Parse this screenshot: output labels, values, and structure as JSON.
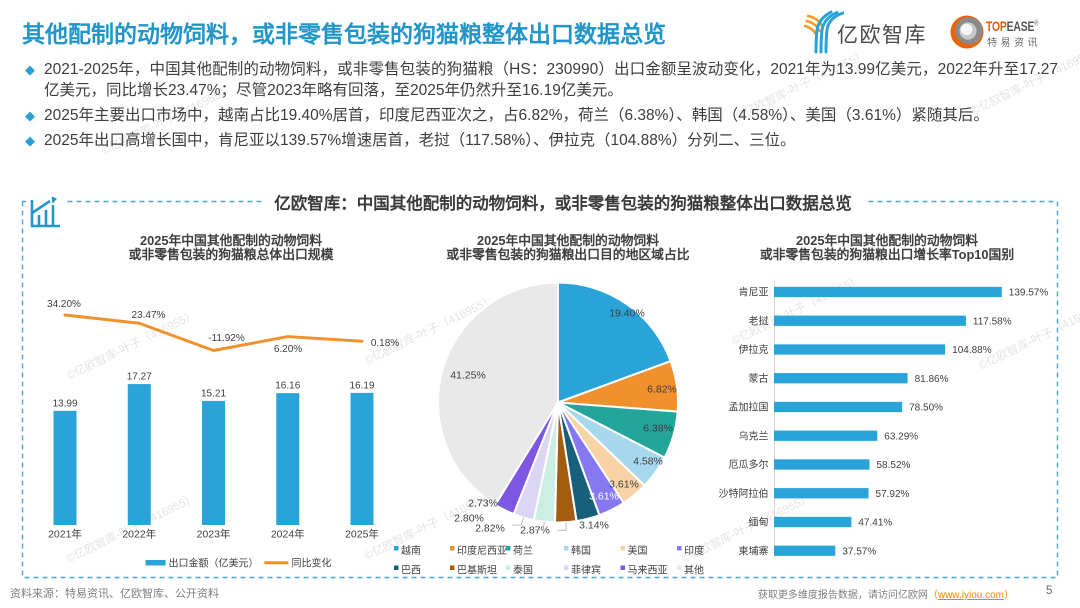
{
  "header": {
    "title": "其他配制的动物饲料，或非零售包装的狗猫粮整体出口数据总览",
    "logo_eo": {
      "name": "亿欧智库"
    },
    "logo_topease": {
      "name_en_orange": "TOP",
      "name_en_gray": "EASE",
      "reg_mark": "®",
      "name_cn": "特易资讯"
    }
  },
  "bullets": [
    "2021-2025年，中国其他配制的动物饲料，或非零售包装的狗猫粮（HS：230990）出口金额呈波动变化，2021年为13.99亿美元，2022年升至17.27亿美元，同比增长23.47%；尽管2023年略有回落，至2025年仍然升至16.19亿美元。",
    "2025年主要出口市场中，越南占比19.40%居首，印度尼西亚次之，占6.82%，荷兰（6.38%）、韩国（4.58%）、美国（3.61%）紧随其后。",
    "2025年出口高增长国中，肯尼亚以139.57%增速居首，老挝（117.58%）、伊拉克（104.88%）分列二、三位。"
  ],
  "panel": {
    "title": "亿欧智库：中国其他配制的动物饲料，或非零售包装的狗猫粮整体出口数据总览"
  },
  "chart_data": [
    {
      "type": "bar",
      "title_lines": [
        "2025年中国其他配制的动物饲料",
        "或非零售包装的狗猫粮总体出口规模"
      ],
      "categories": [
        "2021年",
        "2022年",
        "2023年",
        "2024年",
        "2025年"
      ],
      "series": [
        {
          "name": "出口金额（亿美元）",
          "type": "bar",
          "color": "#2AA3D8",
          "values": [
            13.99,
            17.27,
            15.21,
            16.16,
            16.19
          ]
        },
        {
          "name": "同比变化",
          "type": "line",
          "color": "#F0912D",
          "unit": "%",
          "values": [
            34.2,
            23.47,
            -11.92,
            6.2,
            0.18
          ]
        }
      ]
    },
    {
      "type": "pie",
      "title_lines": [
        "2025年中国其他配制的动物饲料",
        "或非零售包装的狗猫粮出口目的地区域占比"
      ],
      "unit": "%",
      "slices": [
        {
          "label": "越南",
          "value": 19.4,
          "color": "#2AA3D8"
        },
        {
          "label": "印度尼西亚",
          "value": 6.82,
          "color": "#F0912D"
        },
        {
          "label": "荷兰",
          "value": 6.38,
          "color": "#23A59B"
        },
        {
          "label": "韩国",
          "value": 4.58,
          "color": "#A8D8ED"
        },
        {
          "label": "美国",
          "value": 3.61,
          "color": "#F7D3A6"
        },
        {
          "label": "印度",
          "value": 3.61,
          "color": "#8678F0"
        },
        {
          "label": "巴西",
          "value": 3.14,
          "color": "#17607C"
        },
        {
          "label": "巴基斯坦",
          "value": 2.87,
          "color": "#A35C10"
        },
        {
          "label": "泰国",
          "value": 2.82,
          "color": "#CBEFE3"
        },
        {
          "label": "菲律宾",
          "value": 2.8,
          "color": "#DAD6F4"
        },
        {
          "label": "马来西亚",
          "value": 2.73,
          "color": "#7D57E2"
        },
        {
          "label": "其他",
          "value": 41.25,
          "color": "#E9E9E9"
        }
      ]
    },
    {
      "type": "bar",
      "orientation": "horizontal",
      "title_lines": [
        "2025年中国其他配制的动物饲料",
        "或非零售包装的狗猫粮出口增长率Top10国别"
      ],
      "color": "#2AA3D8",
      "unit": "%",
      "categories": [
        "肯尼亚",
        "老挝",
        "伊拉克",
        "蒙古",
        "孟加拉国",
        "乌克兰",
        "厄瓜多尔",
        "沙特阿拉伯",
        "缅甸",
        "柬埔寨"
      ],
      "values": [
        139.57,
        117.58,
        104.88,
        81.86,
        78.5,
        63.29,
        58.52,
        57.92,
        47.41,
        37.57
      ]
    }
  ],
  "watermark_text": "©亿欧智库-叶子（416955）",
  "footer": {
    "source": "资料来源：特易资讯、亿欧智库、公开资料",
    "cta_prefix": "获取更多维度报告数据，请访问亿欧网",
    "cta_open": "（",
    "cta_link": "www.iyiou.com",
    "cta_close": "）",
    "page_number": "5"
  },
  "colors": {
    "title_blue": "#2295C9",
    "bar_blue": "#2AA3D8",
    "line_orange": "#F0912D",
    "panel_border_blue": "#4AA4DA",
    "text_dark": "#3D3D3D",
    "footer_gray": "#7F7F7F",
    "link_orange": "#F28300"
  }
}
